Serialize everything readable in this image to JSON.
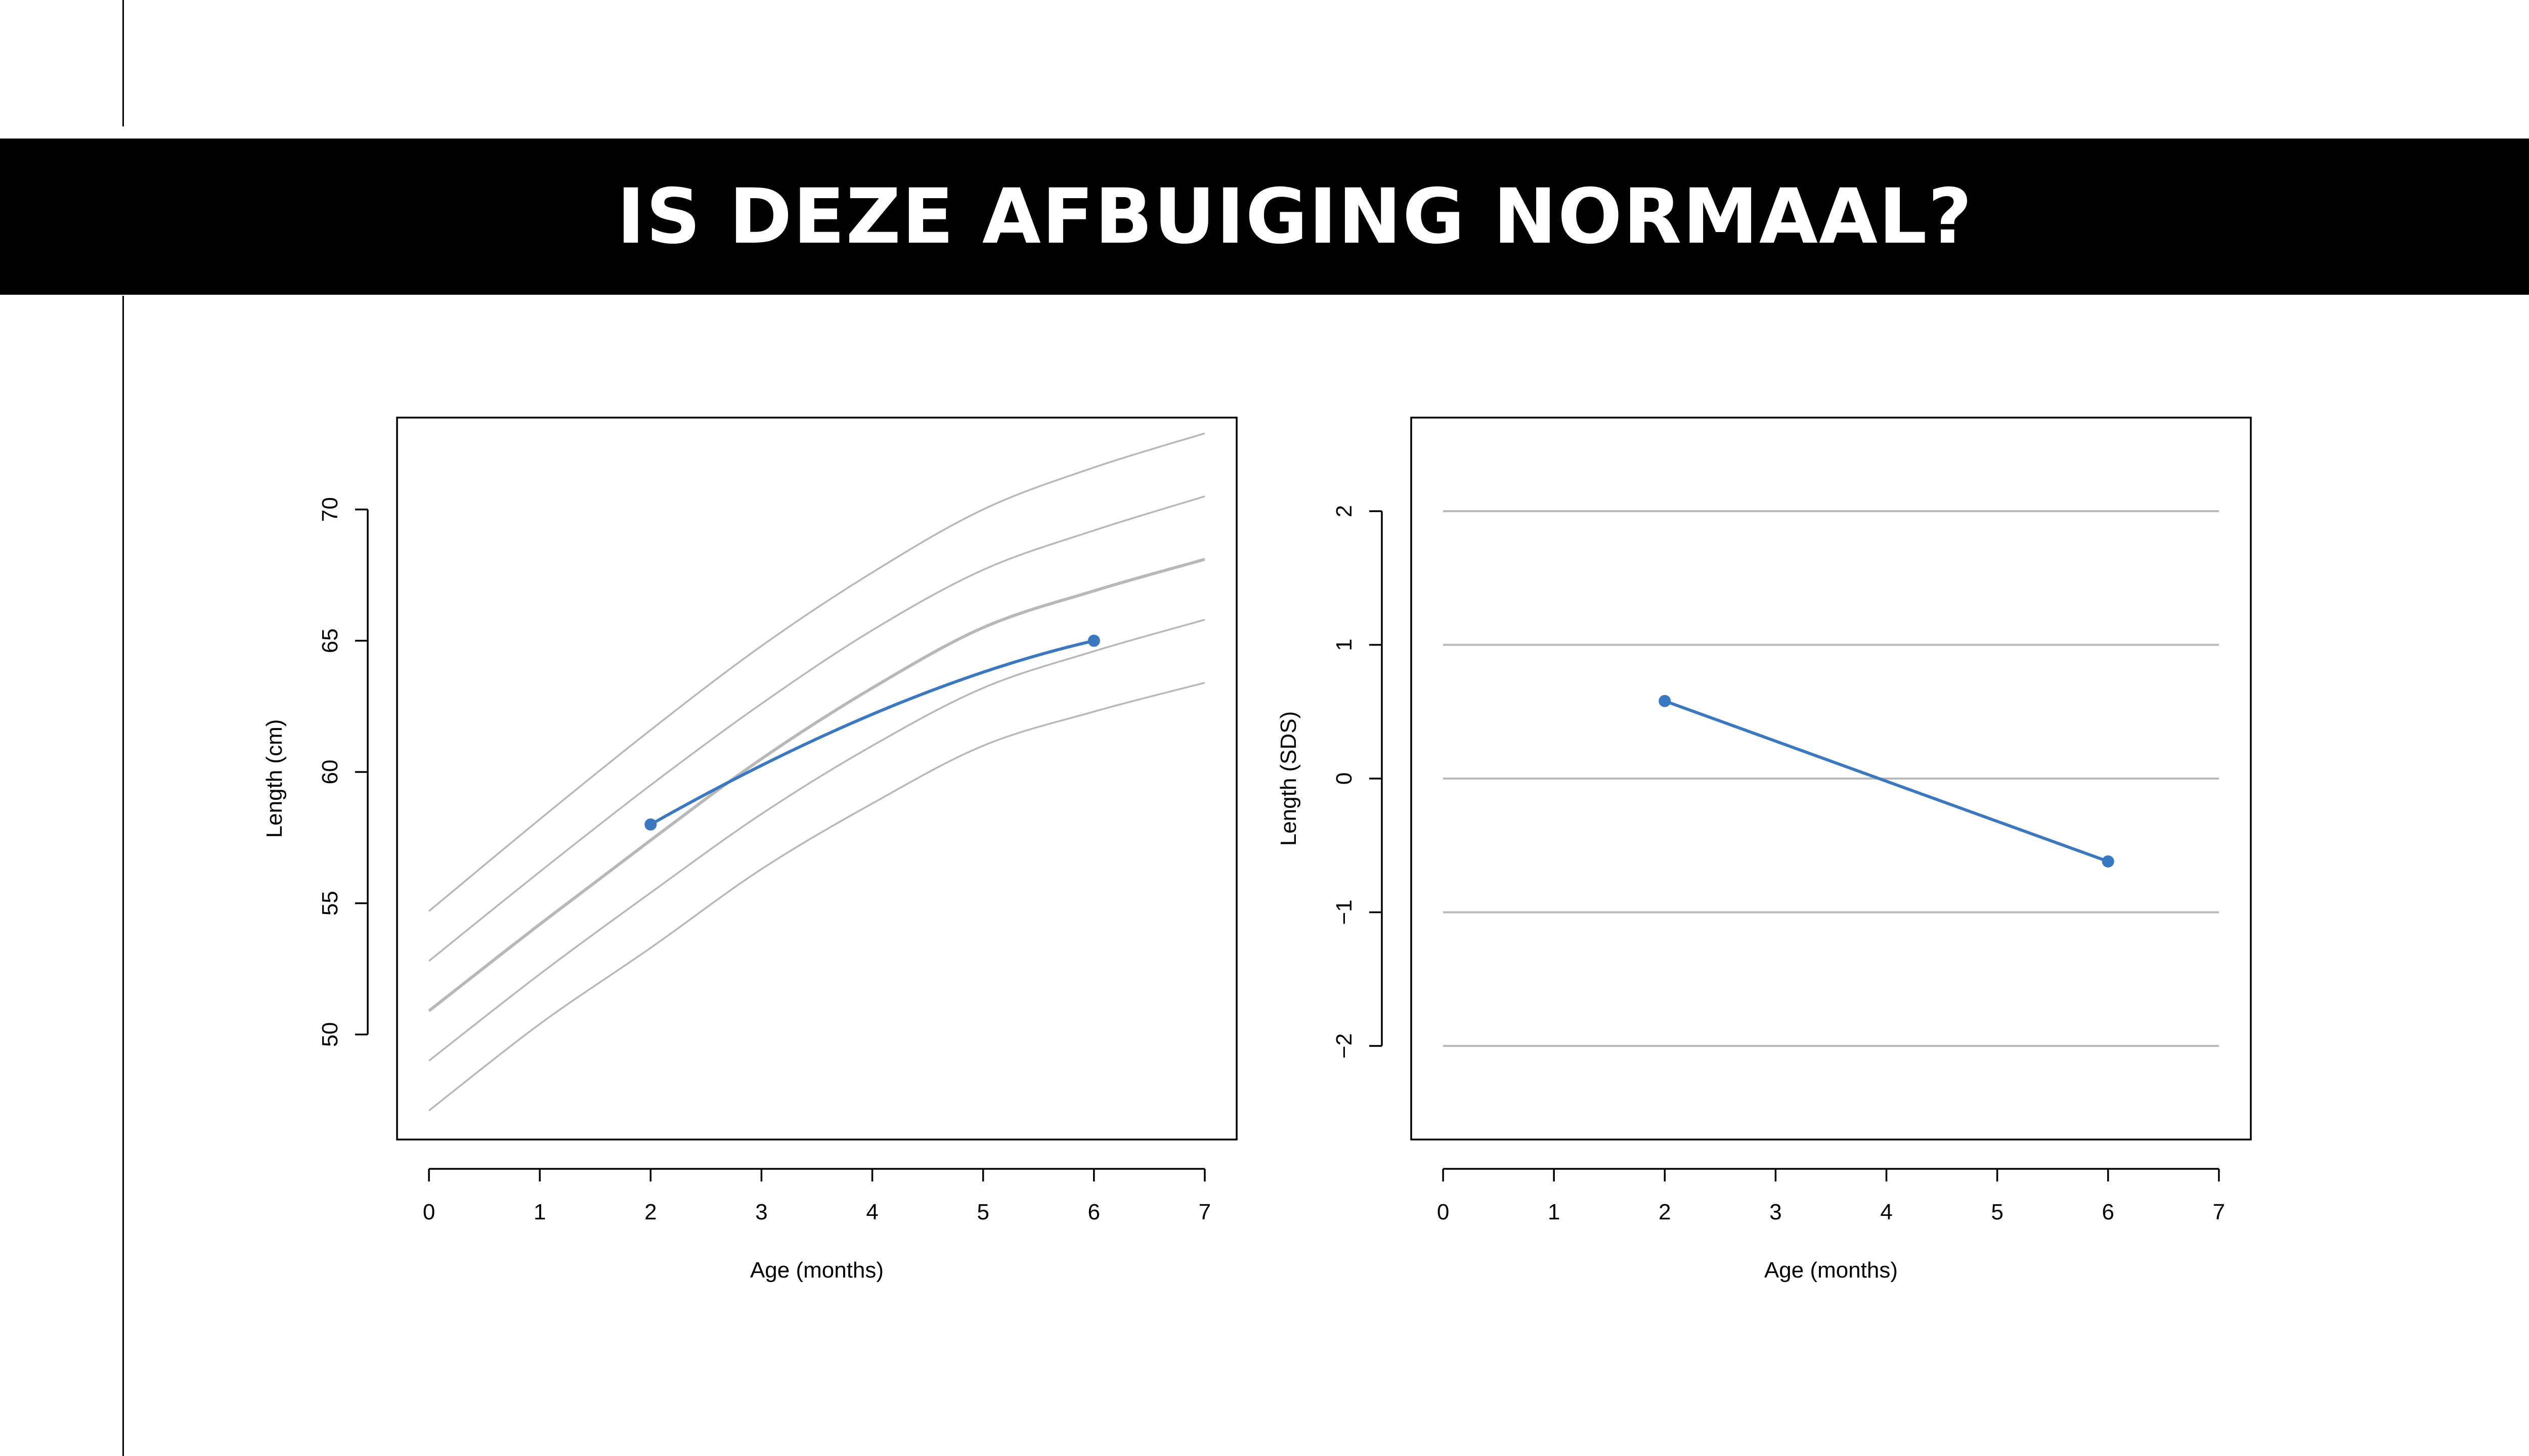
{
  "slide": {
    "title": "IS DEZE AFBUIGING NORMAAL?"
  },
  "colors": {
    "series": "#3a78c2",
    "reference": "#b8b8b8",
    "axis": "#000000"
  },
  "chart_data": [
    {
      "type": "line",
      "title": "",
      "xlabel": "Age (months)",
      "ylabel": "Length (cm)",
      "xlim": [
        0,
        7
      ],
      "ylim": [
        46,
        73.5
      ],
      "xticks": [
        "0",
        "1",
        "2",
        "3",
        "4",
        "5",
        "6",
        "7"
      ],
      "yticks": [
        "50",
        "55",
        "60",
        "65",
        "70"
      ],
      "grid": false,
      "reference_curves": [
        {
          "x": [
            0,
            1,
            2,
            3,
            4,
            5,
            6,
            7
          ],
          "y": [
            54.7,
            58.2,
            61.6,
            64.8,
            67.6,
            70.0,
            71.6,
            72.9
          ]
        },
        {
          "x": [
            0,
            1,
            2,
            3,
            4,
            5,
            6,
            7
          ],
          "y": [
            52.8,
            56.2,
            59.5,
            62.6,
            65.4,
            67.7,
            69.2,
            70.5
          ]
        },
        {
          "x": [
            0,
            1,
            2,
            3,
            4,
            5,
            6,
            7
          ],
          "y": [
            50.9,
            54.2,
            57.4,
            60.5,
            63.2,
            65.5,
            66.9,
            68.1
          ]
        },
        {
          "x": [
            0,
            1,
            2,
            3,
            4,
            5,
            6,
            7
          ],
          "y": [
            49.0,
            52.3,
            55.4,
            58.4,
            61.0,
            63.2,
            64.6,
            65.8
          ]
        },
        {
          "x": [
            0,
            1,
            2,
            3,
            4,
            5,
            6,
            7
          ],
          "y": [
            47.1,
            50.4,
            53.3,
            56.3,
            58.8,
            61.0,
            62.3,
            63.4
          ]
        }
      ],
      "series": [
        {
          "x": [
            2,
            6
          ],
          "y": [
            58.0,
            65.0
          ]
        }
      ]
    },
    {
      "type": "line",
      "title": "",
      "xlabel": "Age (months)",
      "ylabel": "Length (SDS)",
      "xlim": [
        0,
        7
      ],
      "ylim": [
        -2.7,
        2.7
      ],
      "xticks": [
        "0",
        "1",
        "2",
        "3",
        "4",
        "5",
        "6",
        "7"
      ],
      "yticks": [
        "−2",
        "−1",
        "0",
        "1",
        "2"
      ],
      "grid": true,
      "gridlines": [
        -2,
        -1,
        0,
        1,
        2
      ],
      "series": [
        {
          "x": [
            2,
            6
          ],
          "y": [
            0.58,
            -0.62
          ]
        }
      ]
    }
  ]
}
